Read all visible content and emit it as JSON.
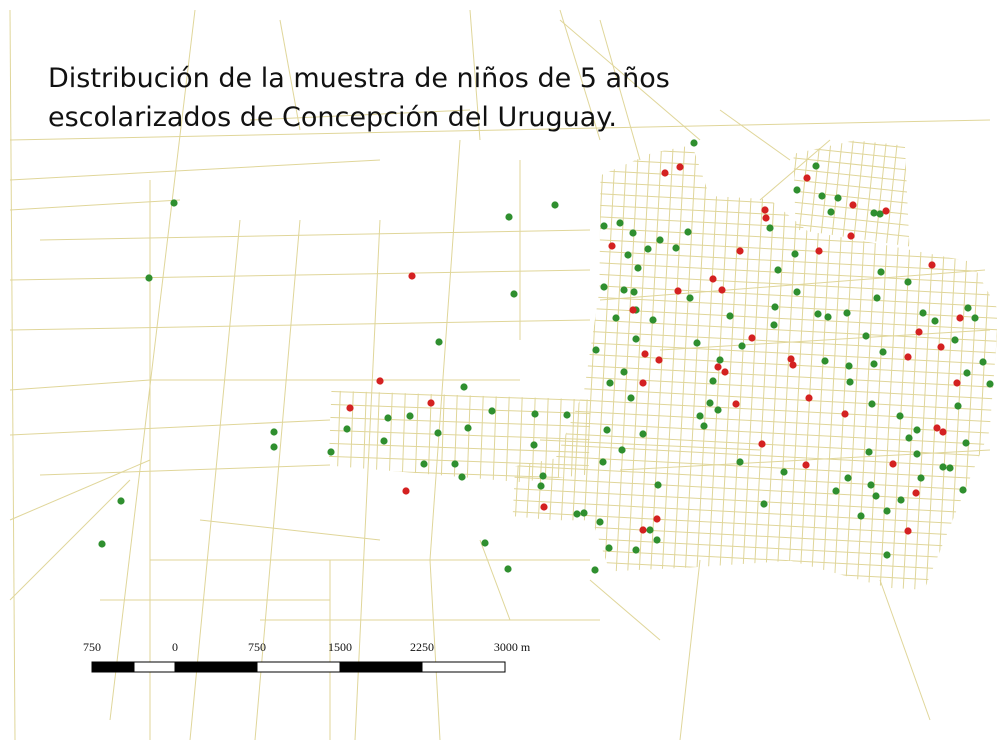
{
  "title": {
    "lines": [
      "Distribución de la muestra de niños de 5 años",
      "escolarizados de Concepción del Uruguay."
    ]
  },
  "scale_bar": {
    "labels": [
      "750",
      "0",
      "750",
      "1500",
      "2250",
      "3000 m"
    ]
  }
}
